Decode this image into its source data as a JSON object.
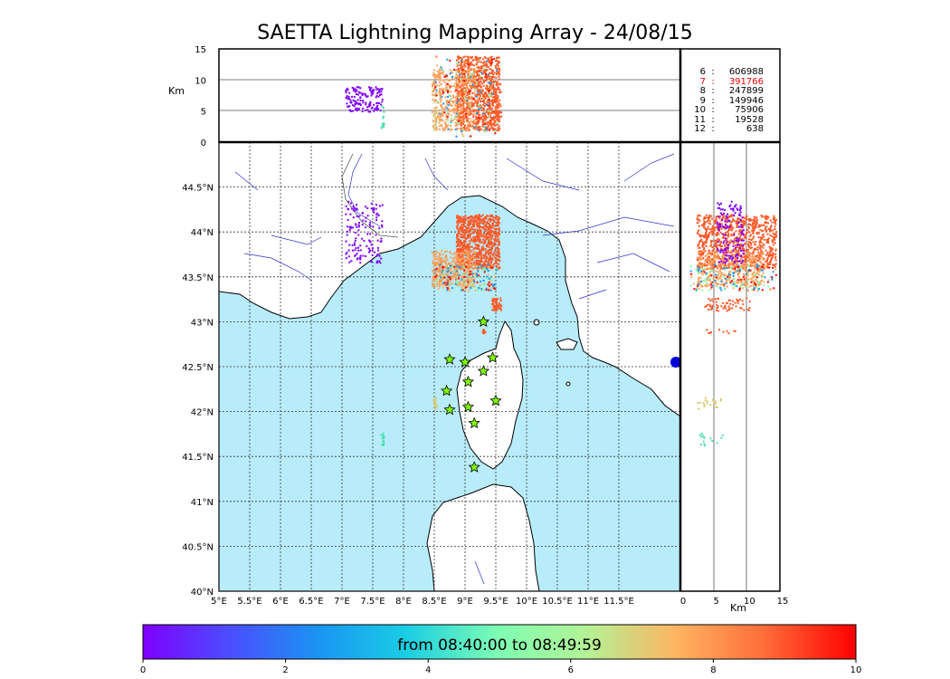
{
  "title": "SAETTA Lightning Mapping Array - 24/08/15",
  "map": {
    "lon_range": [
      5,
      12.5
    ],
    "lat_range": [
      40,
      45
    ],
    "lon_ticks": [
      "5°E",
      "5.5°E",
      "6°E",
      "6.5°E",
      "7°E",
      "7.5°E",
      "8°E",
      "8.5°E",
      "9°E",
      "9.5°E",
      "10°E",
      "10.5°E",
      "11°E",
      "11.5°E"
    ],
    "lat_ticks": [
      "40°N",
      "40.5°N",
      "41°N",
      "41.5°N",
      "42°N",
      "42.5°N",
      "43°N",
      "43.5°N",
      "44°N",
      "44.5°N"
    ],
    "sea_color": "#b8ecfa",
    "stations_symbol": "star-icon",
    "station_color": "#7fff00"
  },
  "altitude_panel": {
    "unit": "Km",
    "ticks": [
      "0",
      "5",
      "10",
      "15"
    ]
  },
  "side_panel": {
    "unit": "Km",
    "ticks": [
      "0",
      "5",
      "10",
      "15"
    ]
  },
  "counts": [
    {
      "label": "6",
      "value": "606988",
      "highlight": false
    },
    {
      "label": "7",
      "value": "391766",
      "highlight": true
    },
    {
      "label": "8",
      "value": "247899",
      "highlight": false
    },
    {
      "label": "9",
      "value": "149946",
      "highlight": false
    },
    {
      "label": "10",
      "value": "75906",
      "highlight": false
    },
    {
      "label": "11",
      "value": "19528",
      "highlight": false
    },
    {
      "label": "12",
      "value": "638",
      "highlight": false
    }
  ],
  "colorbar": {
    "label": "from 08:40:00 to 08:49:59",
    "ticks": [
      "0",
      "2",
      "4",
      "6",
      "8",
      "10"
    ],
    "range": [
      0,
      10
    ],
    "colormap": "rainbow"
  },
  "colors": {
    "highlight_count": "#ff0000",
    "dominant_source": "#ff5a28"
  }
}
